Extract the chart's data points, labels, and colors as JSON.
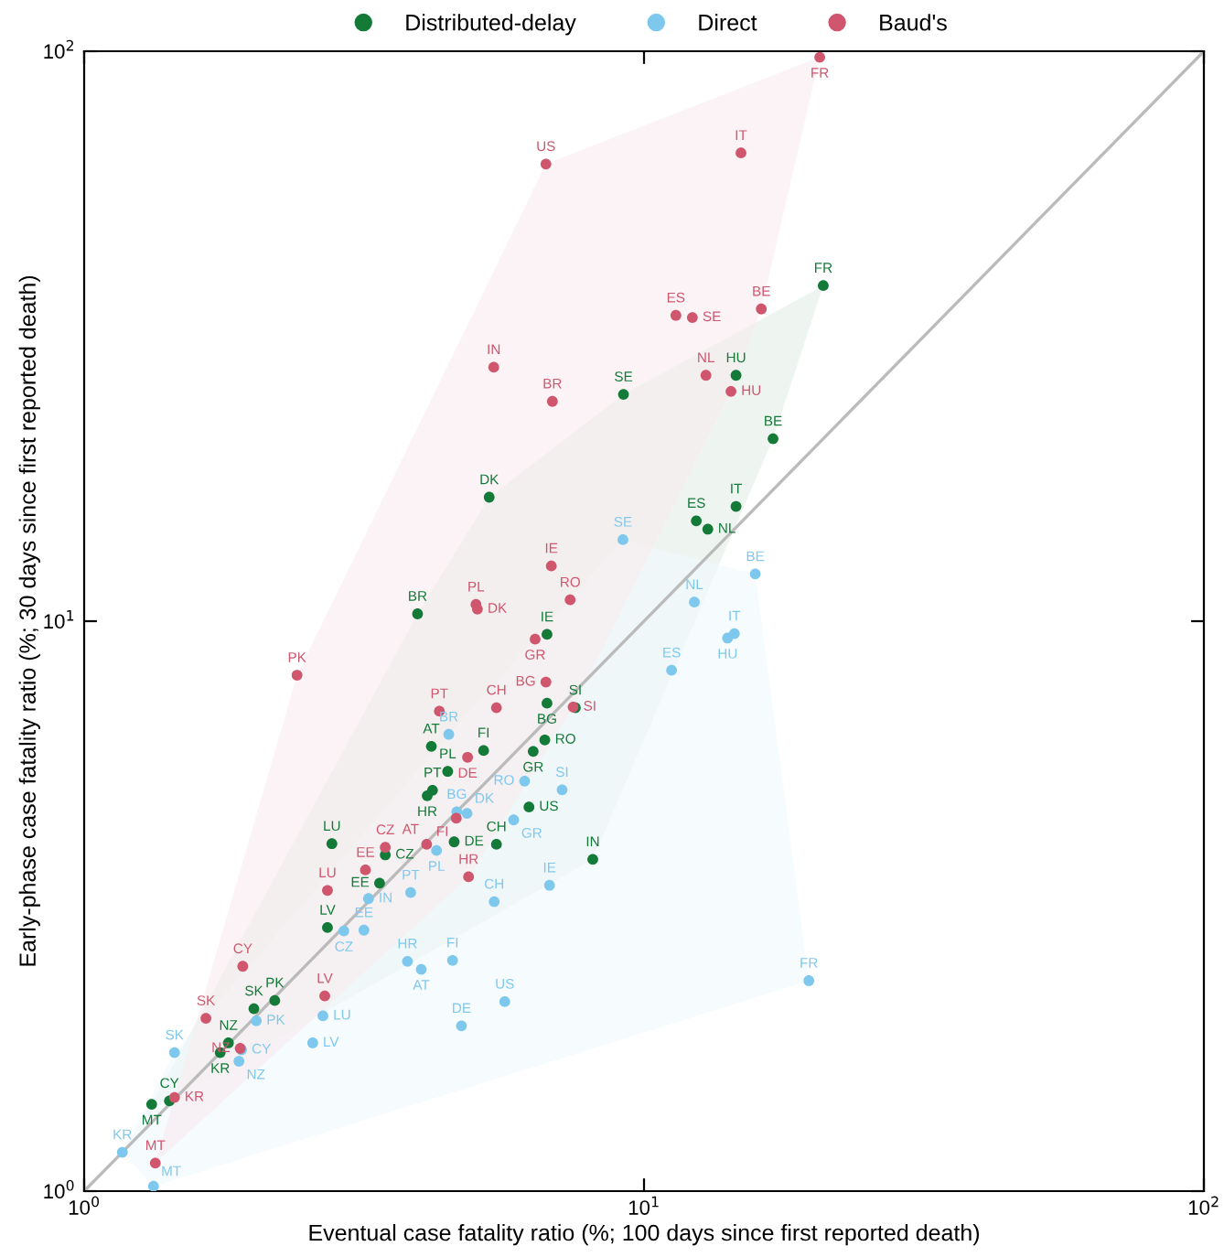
{
  "chart_data": {
    "type": "scatter",
    "xlabel": "Eventual case fatality ratio (%; 100 days since first reported death)",
    "ylabel": "Early-phase case fatality ratio (%; 30 days since first reported death)",
    "log": "xy",
    "xlim": [
      1,
      100
    ],
    "ylim": [
      1,
      100
    ],
    "xticks": [
      {
        "value": 1,
        "label": "10$^{0}$"
      },
      {
        "value": 10,
        "label": "10$^{1}$"
      },
      {
        "value": 100,
        "label": "10$^{2}$"
      }
    ],
    "yticks": [
      {
        "value": 1,
        "label": "10$^{0}$"
      },
      {
        "value": 10,
        "label": "10$^{1}$"
      },
      {
        "value": 100,
        "label": "10$^{2}$"
      }
    ],
    "grid": false,
    "legend": "top",
    "marker": "circle",
    "series": [
      {
        "type": "line",
        "marker": "none",
        "color": "#bbbbbb",
        "x": [
          1,
          100
        ],
        "values": [
          1,
          100
        ]
      },
      {
        "name": "Distributed-delay",
        "color": "#137a38",
        "x": [
          20.9,
          14.6,
          9.19,
          17.0,
          5.29,
          14.6,
          12.4,
          13.0,
          3.94,
          6.71,
          6.71,
          7.54,
          6.65,
          6.34,
          4.17,
          5.17,
          4.46,
          4.19,
          4.1,
          6.23,
          4.58,
          5.45,
          3.45,
          3.37,
          8.1,
          2.77,
          2.72,
          2.19,
          2.01,
          1.81,
          1.75,
          1.42,
          1.32
        ],
        "values": [
          38.8,
          27.0,
          25.0,
          20.9,
          16.5,
          15.9,
          15.0,
          14.5,
          10.3,
          9.48,
          7.18,
          7.05,
          6.19,
          5.91,
          6.03,
          5.93,
          5.45,
          5.05,
          4.94,
          4.72,
          4.1,
          4.06,
          3.89,
          3.47,
          3.82,
          4.07,
          2.9,
          2.16,
          2.09,
          1.82,
          1.75,
          1.44,
          1.42
        ],
        "value_labels": [
          "FR",
          "HU",
          "SE",
          "BE",
          "DK",
          "IT",
          "ES",
          "NL",
          "BR",
          "IE",
          "BG",
          "SI",
          "RO",
          "GR",
          "AT",
          "FI",
          "PL",
          "PT",
          "HR",
          "US",
          "DE",
          "CH",
          "CZ",
          "EE",
          "IN",
          "LU",
          "LV",
          "PK",
          "SK",
          "NZ",
          "KR",
          "CY",
          "MT"
        ]
      },
      {
        "name": "Direct",
        "color": "#7ec8ee",
        "x": [
          15.8,
          12.3,
          14.5,
          14.1,
          11.2,
          9.17,
          4.48,
          6.12,
          7.14,
          4.63,
          4.83,
          5.85,
          6.78,
          5.4,
          5.64,
          19.7,
          4.26,
          3.83,
          3.22,
          3.16,
          2.91,
          3.78,
          4.0,
          4.55,
          4.72,
          2.67,
          2.56,
          2.03,
          1.91,
          1.89,
          1.45,
          1.17,
          1.33
        ],
        "values": [
          12.1,
          10.8,
          9.51,
          9.34,
          8.2,
          13.9,
          6.33,
          5.24,
          5.06,
          4.63,
          4.6,
          4.48,
          3.44,
          3.22,
          2.15,
          2.34,
          3.96,
          3.34,
          3.26,
          2.87,
          2.86,
          2.53,
          2.45,
          2.54,
          1.95,
          2.03,
          1.82,
          1.99,
          1.77,
          1.69,
          1.75,
          1.17,
          1.02
        ],
        "value_labels": [
          "BE",
          "NL",
          "IT",
          "HU",
          "ES",
          "SE",
          "BR",
          "RO",
          "SI",
          "BG",
          "DK",
          "GR",
          "IE",
          "CH",
          "US",
          "FR",
          "PL",
          "PT",
          "IN",
          "EE",
          "CZ",
          "HR",
          "AT",
          "FI",
          "DE",
          "LU",
          "LV",
          "PK",
          "CY",
          "NZ",
          "SK",
          "KR",
          "MT"
        ]
      },
      {
        "name": "Baud's",
        "color": "#d0566e",
        "x": [
          20.6,
          14.9,
          6.68,
          11.4,
          12.2,
          16.2,
          5.39,
          6.86,
          12.9,
          14.3,
          6.83,
          5.01,
          5.04,
          7.38,
          6.39,
          6.68,
          2.4,
          4.31,
          5.45,
          7.47,
          4.84,
          4.62,
          4.09,
          3.45,
          4.86,
          3.18,
          2.72,
          1.92,
          2.69,
          1.65,
          1.9,
          1.45,
          1.34
        ],
        "values": [
          97.6,
          66.3,
          63.4,
          34.4,
          34.1,
          35.3,
          27.9,
          24.3,
          27.0,
          25.3,
          12.5,
          10.7,
          10.5,
          10.9,
          9.3,
          7.82,
          8.04,
          6.95,
          7.05,
          7.07,
          5.77,
          4.51,
          4.06,
          4.01,
          3.56,
          3.66,
          3.37,
          2.48,
          2.2,
          2.01,
          1.78,
          1.46,
          1.12
        ],
        "value_labels": [
          "FR",
          "IT",
          "US",
          "ES",
          "SE",
          "BE",
          "IN",
          "BR",
          "NL",
          "HU",
          "IE",
          "PL",
          "DK",
          "RO",
          "GR",
          "BG",
          "PK",
          "PT",
          "CH",
          "SI",
          "DE",
          "FI",
          "AT",
          "CZ",
          "HR",
          "EE",
          "LU",
          "CY",
          "LV",
          "SK",
          "NZ",
          "KR",
          "MT"
        ]
      }
    ]
  }
}
